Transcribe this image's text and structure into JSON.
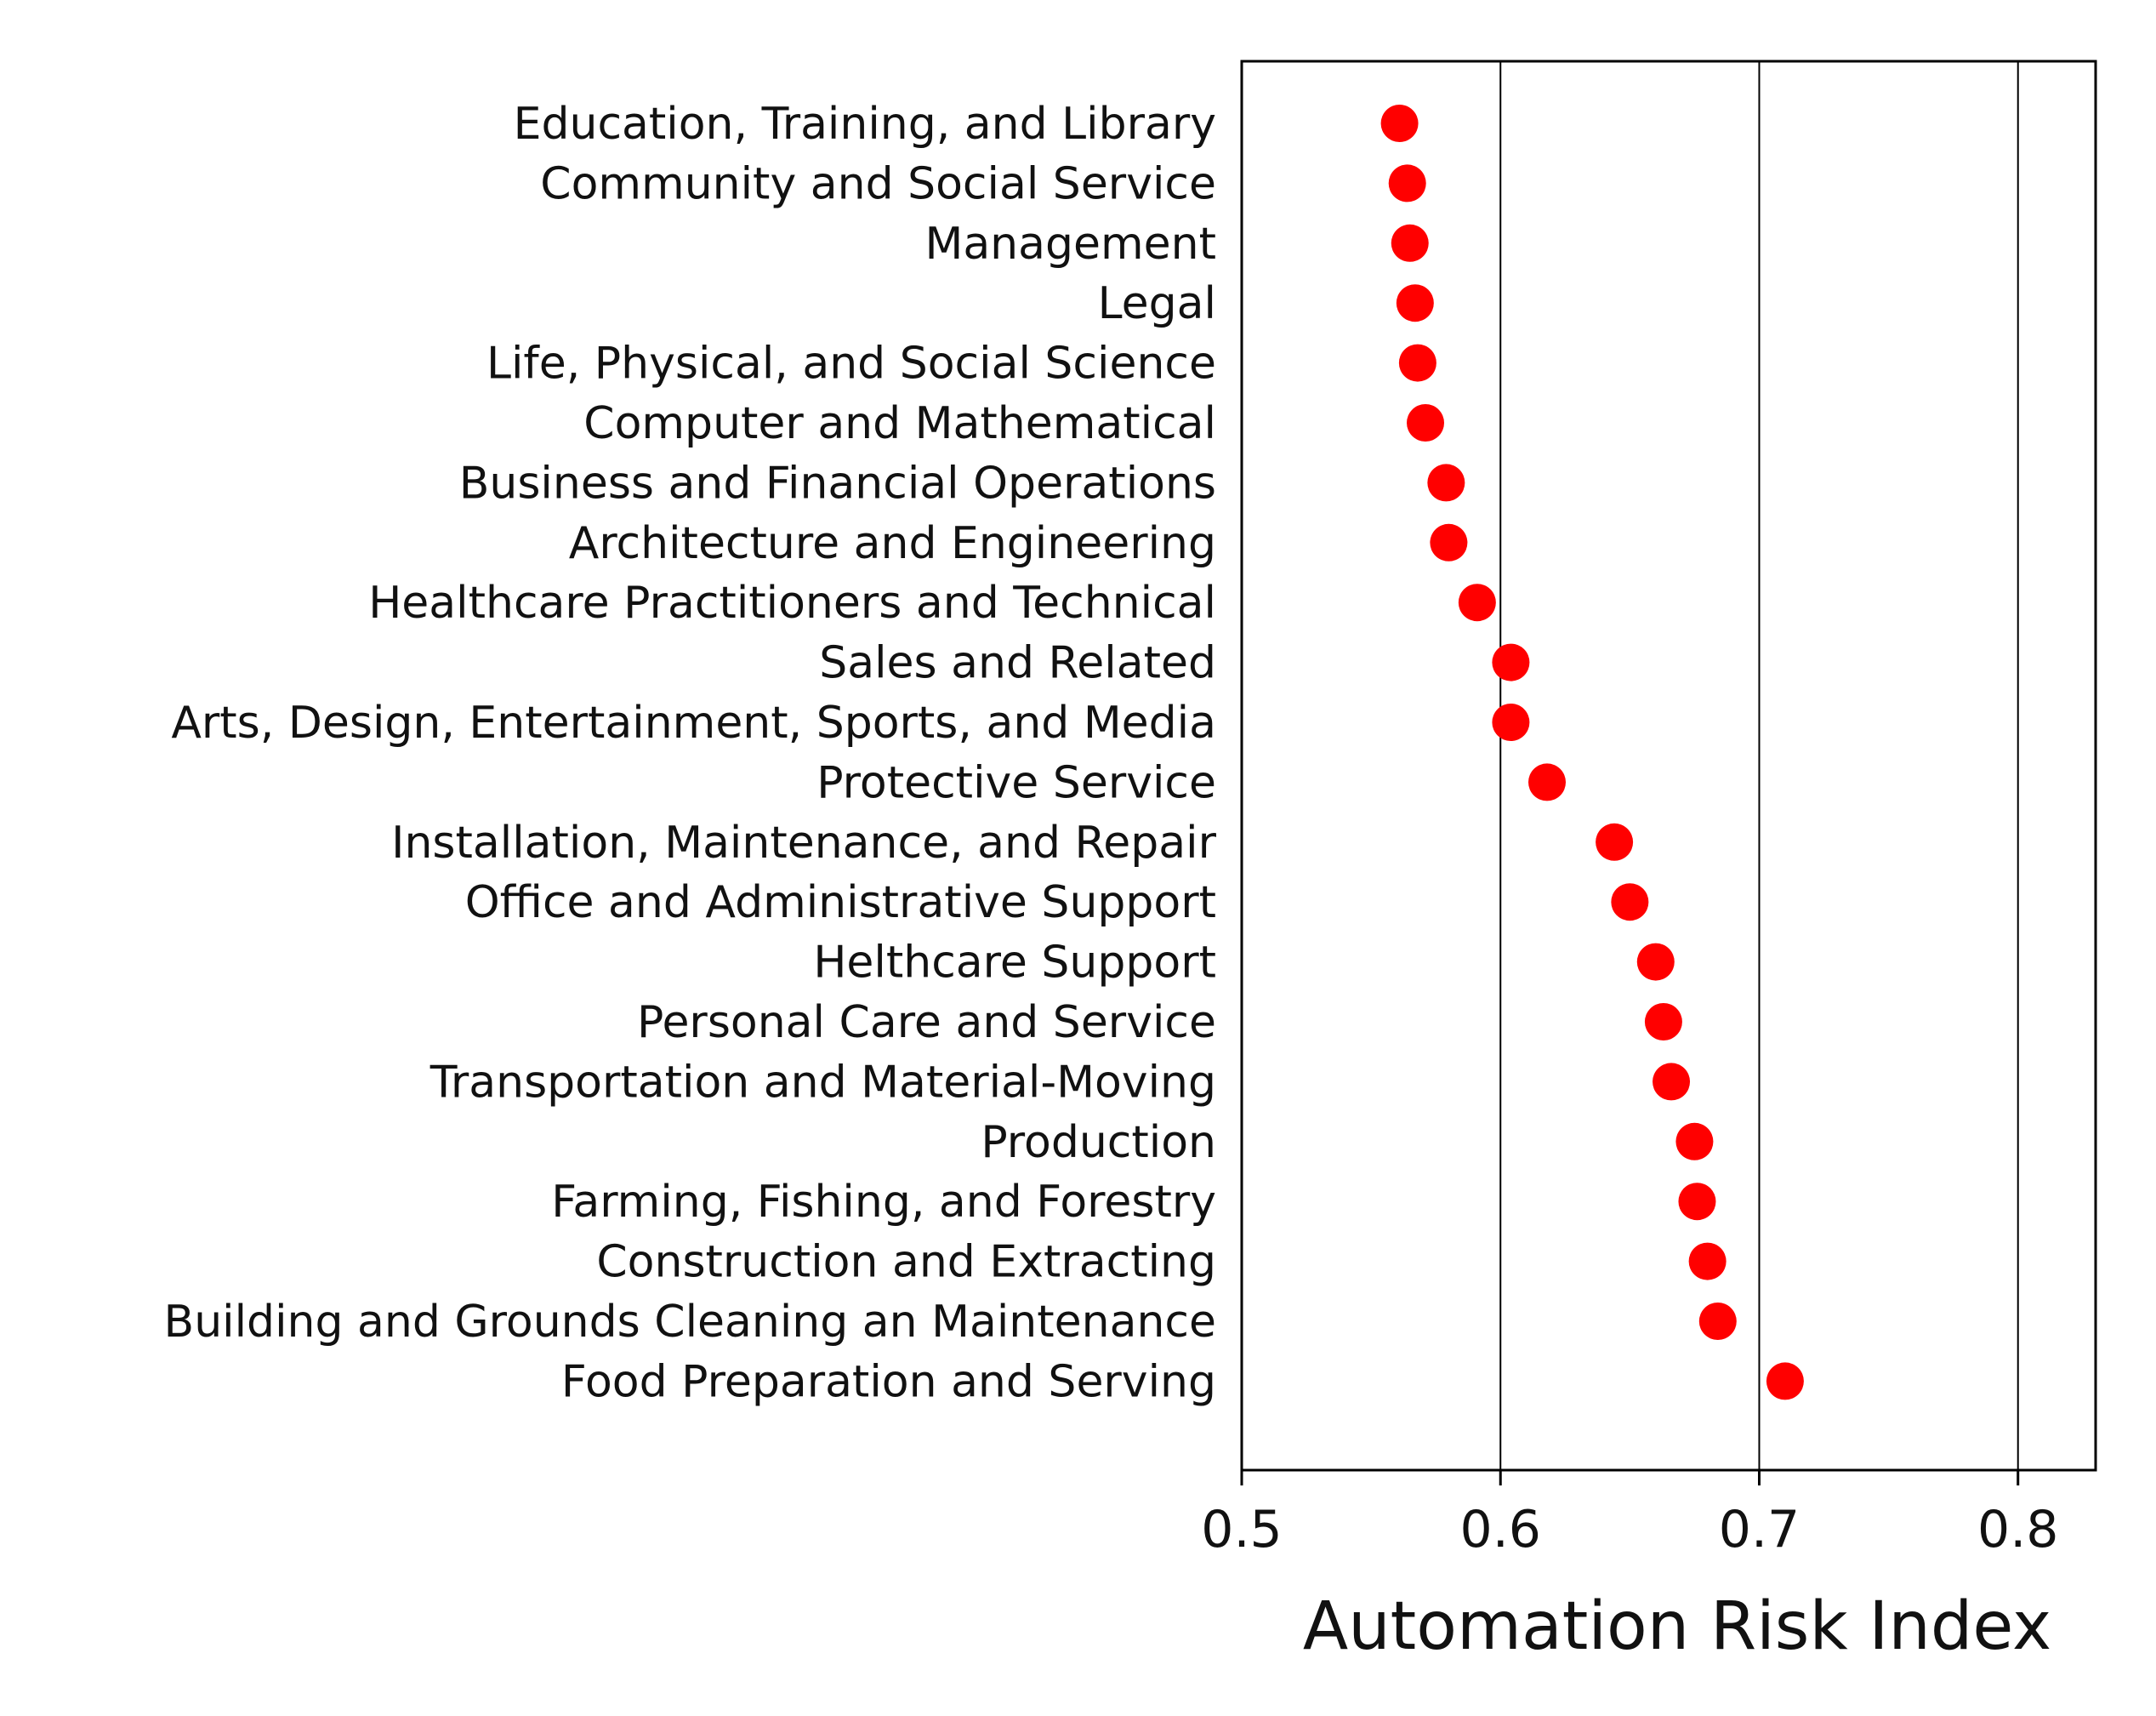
{
  "chart_data": {
    "type": "scatter",
    "title": "",
    "xlabel": "Automation Risk Index",
    "ylabel": "",
    "xlim": [
      0.5,
      0.83
    ],
    "x_ticks": [
      0.5,
      0.6,
      0.7,
      0.8
    ],
    "x_tick_labels": [
      "0.5",
      "0.6",
      "0.7",
      "0.8"
    ],
    "grid": "vertical",
    "marker_color": "#ff0000",
    "categories": [
      "Education, Training, and Library",
      "Community and Social Service",
      "Management",
      "Legal",
      "Life, Physical, and Social Science",
      "Computer and Mathematical",
      "Business and Financial Operations",
      "Architecture and Engineering",
      "Healthcare Practitioners and Technical",
      "Sales and Related",
      "Arts, Design, Entertainment, Sports, and Media",
      "Protective Service",
      "Installation, Maintenance, and Repair",
      "Office and Administrative Support",
      "Helthcare Support",
      "Personal Care and Service",
      "Transportation and Material-Moving",
      "Production",
      "Farming, Fishing, and Forestry",
      "Construction and Extracting",
      "Building and Grounds Cleaning an Maintenance",
      "Food Preparation and Serving"
    ],
    "values": [
      0.561,
      0.564,
      0.565,
      0.567,
      0.568,
      0.571,
      0.579,
      0.58,
      0.591,
      0.604,
      0.604,
      0.618,
      0.644,
      0.65,
      0.66,
      0.663,
      0.666,
      0.675,
      0.676,
      0.68,
      0.684,
      0.71
    ]
  }
}
